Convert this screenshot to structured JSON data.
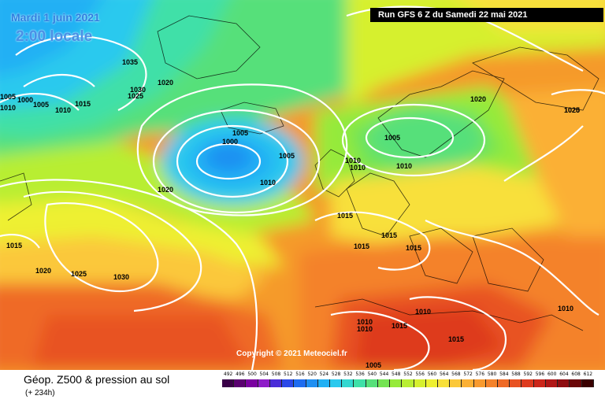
{
  "header": {
    "date": "Mardi 1 juin 2021",
    "time": "2:00 locale",
    "run": "Run GFS 6 Z du Samedi 22 mai 2021"
  },
  "copyright": "Copyright © 2021 Meteociel.fr",
  "footer": {
    "title": "Géop. Z500 & pression au sol",
    "subtitle": "(+ 234h)"
  },
  "legend": {
    "values": [
      "492",
      "496",
      "500",
      "504",
      "508",
      "512",
      "516",
      "520",
      "524",
      "528",
      "532",
      "536",
      "540",
      "544",
      "548",
      "552",
      "556",
      "560",
      "564",
      "568",
      "572",
      "576",
      "580",
      "584",
      "588",
      "592",
      "596",
      "600",
      "604",
      "608",
      "612"
    ],
    "colors": [
      "#3a0048",
      "#5a0070",
      "#7a00a0",
      "#8e1cc8",
      "#4a2cd8",
      "#2b48e8",
      "#1e6cf0",
      "#1f8ff2",
      "#21b0f4",
      "#2ac9ee",
      "#33d7d0",
      "#3fe0a8",
      "#56e07a",
      "#74e452",
      "#96ea3a",
      "#b8ee32",
      "#d6f02e",
      "#eef030",
      "#f8e03a",
      "#fbc83a",
      "#fbb034",
      "#f89a2e",
      "#f4822a",
      "#ef6a26",
      "#e85222",
      "#de3a1e",
      "#cc261a",
      "#b01616",
      "#8e0c10",
      "#6a0608",
      "#3a0000"
    ]
  },
  "isobars": [
    {
      "label": "1035"
    },
    {
      "label": "1030"
    },
    {
      "label": "1025"
    },
    {
      "label": "1020"
    },
    {
      "label": "1010"
    },
    {
      "label": "1005"
    },
    {
      "label": "1000"
    },
    {
      "label": "1005"
    },
    {
      "label": "1010"
    },
    {
      "label": "1015"
    },
    {
      "label": "1020"
    },
    {
      "label": "1005"
    },
    {
      "label": "1000"
    },
    {
      "label": "1005"
    },
    {
      "label": "1010"
    },
    {
      "label": "1020"
    },
    {
      "label": "1005"
    },
    {
      "label": "1010"
    },
    {
      "label": "1010"
    },
    {
      "label": "1010"
    },
    {
      "label": "1020"
    },
    {
      "label": "1025"
    },
    {
      "label": "1015"
    },
    {
      "label": "1015"
    },
    {
      "label": "1015"
    },
    {
      "label": "1015"
    },
    {
      "label": "1015"
    },
    {
      "label": "1020"
    },
    {
      "label": "1025"
    },
    {
      "label": "1030"
    },
    {
      "label": "1010"
    },
    {
      "label": "1010"
    },
    {
      "label": "1015"
    },
    {
      "label": "1010"
    },
    {
      "label": "1015"
    },
    {
      "label": "1005"
    },
    {
      "label": "1010"
    }
  ]
}
